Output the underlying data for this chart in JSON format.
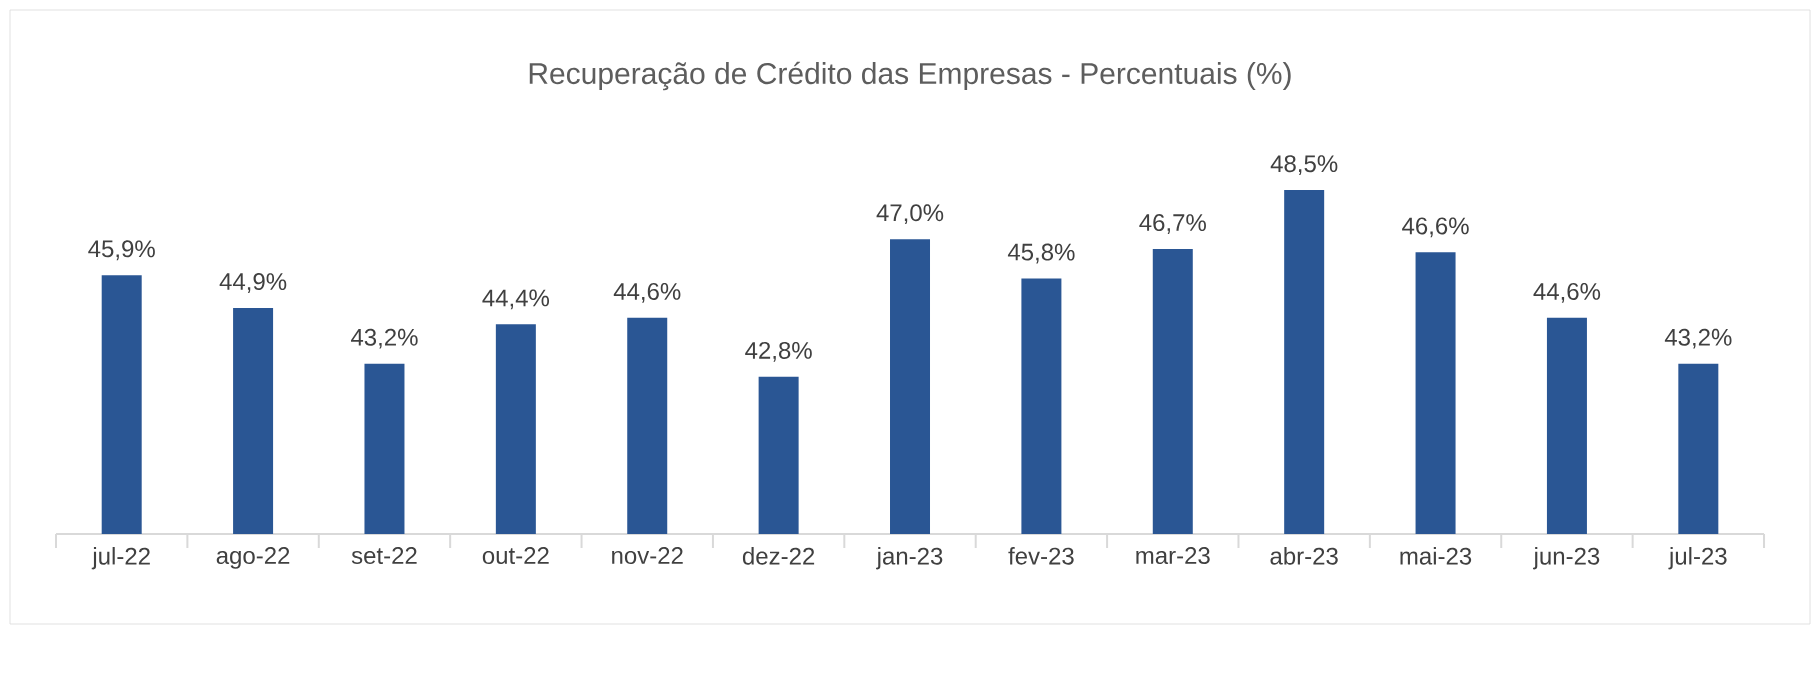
{
  "chart_data": {
    "type": "bar",
    "title": "Recuperação de Crédito das Empresas - Percentuais (%)",
    "categories": [
      "jul-22",
      "ago-22",
      "set-22",
      "out-22",
      "nov-22",
      "dez-22",
      "jan-23",
      "fev-23",
      "mar-23",
      "abr-23",
      "mai-23",
      "jun-23",
      "jul-23"
    ],
    "values": [
      45.9,
      44.9,
      43.2,
      44.4,
      44.6,
      42.8,
      47.0,
      45.8,
      46.7,
      48.5,
      46.6,
      44.6,
      43.2
    ],
    "value_labels": [
      "45,9%",
      "44,9%",
      "43,2%",
      "44,4%",
      "44,6%",
      "42,8%",
      "47,0%",
      "45,8%",
      "46,7%",
      "48,5%",
      "46,6%",
      "44,6%",
      "43,2%"
    ],
    "color": "#2a5694",
    "ylim": [
      38,
      48.5
    ],
    "tick_labels": "x"
  }
}
